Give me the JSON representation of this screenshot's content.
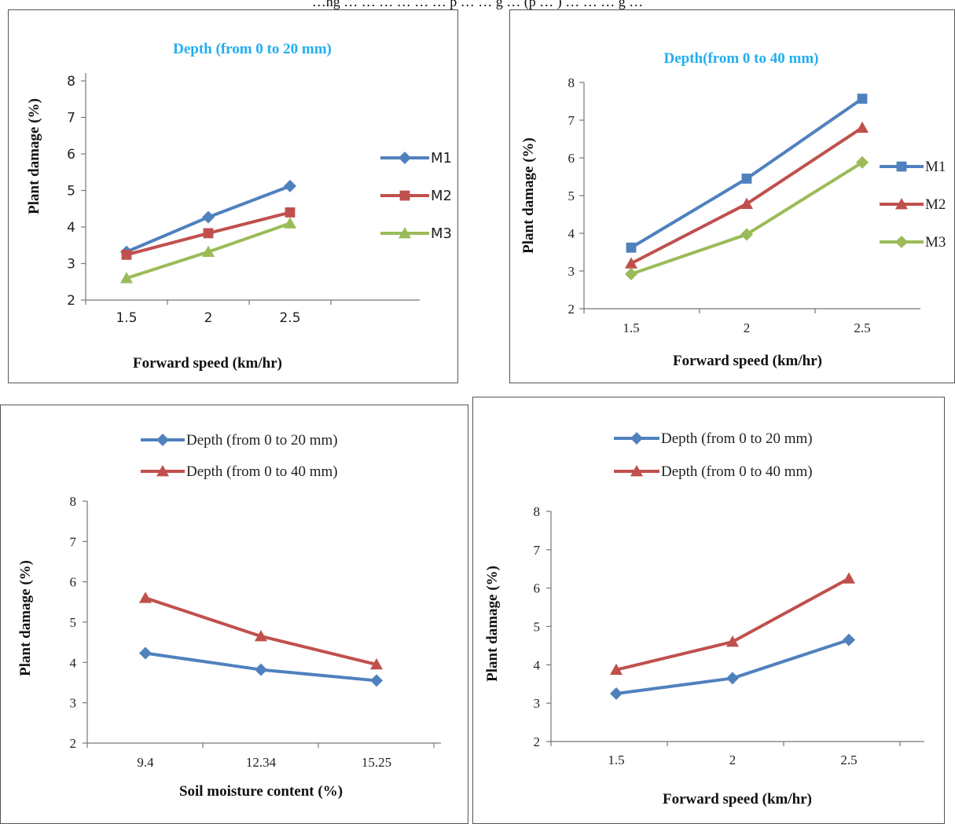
{
  "top_caption": "…ng … … … … … … p … … g … (p … ) … … … g …",
  "chart_data": [
    {
      "id": "c1",
      "type": "line",
      "title": "Depth (from 0 to 20 mm)",
      "xlabel": "Forward speed  (km/hr)",
      "ylabel": "Plant damage (%)",
      "categories": [
        "1.5",
        "2",
        "2.5"
      ],
      "ylim": [
        2,
        8
      ],
      "yticks": [
        2,
        3,
        4,
        5,
        6,
        7,
        8
      ],
      "legend_position": "right",
      "grid": false,
      "series": [
        {
          "name": "M1",
          "color": "#4f81bd",
          "marker": "diamond",
          "values": [
            3.32,
            4.27,
            5.12
          ]
        },
        {
          "name": "M2",
          "color": "#c0504d",
          "marker": "square",
          "values": [
            3.24,
            3.83,
            4.4
          ]
        },
        {
          "name": "M3",
          "color": "#9bbb59",
          "marker": "triangle",
          "values": [
            2.6,
            3.32,
            4.1
          ]
        }
      ]
    },
    {
      "id": "c2",
      "type": "line",
      "title": "Depth(from 0 to 40 mm)",
      "xlabel": "Forward speed (km/hr)",
      "ylabel": "Plant damage (%)",
      "categories": [
        "1.5",
        "2",
        "2.5"
      ],
      "ylim": [
        2,
        8
      ],
      "yticks": [
        2,
        3,
        4,
        5,
        6,
        7,
        8
      ],
      "legend_position": "right",
      "grid": false,
      "series": [
        {
          "name": "M1",
          "color": "#4f81bd",
          "marker": "square",
          "values": [
            3.62,
            5.45,
            7.57
          ]
        },
        {
          "name": "M2",
          "color": "#c0504d",
          "marker": "triangle",
          "values": [
            3.2,
            4.78,
            6.8
          ]
        },
        {
          "name": "M3",
          "color": "#9bbb59",
          "marker": "diamond",
          "values": [
            2.92,
            3.97,
            5.88
          ]
        }
      ]
    },
    {
      "id": "c3",
      "type": "line",
      "title": "",
      "xlabel": "Soil moisture content (%)",
      "ylabel": "Plant damage (%)",
      "categories": [
        "9.4",
        "12.34",
        "15.25"
      ],
      "ylim": [
        2,
        8
      ],
      "yticks": [
        2,
        3,
        4,
        5,
        6,
        7,
        8
      ],
      "legend_position": "top",
      "grid": false,
      "series": [
        {
          "name": "Depth (from 0 to 20 mm)",
          "color": "#4f81bd",
          "marker": "diamond",
          "values": [
            4.23,
            3.82,
            3.55
          ]
        },
        {
          "name": "Depth (from 0 to 40 mm)",
          "color": "#c0504d",
          "marker": "triangle",
          "values": [
            5.6,
            4.65,
            3.95
          ]
        }
      ]
    },
    {
      "id": "c4",
      "type": "line",
      "title": "",
      "xlabel": "Forward speed (km/hr)",
      "ylabel": "Plant damage (%)",
      "categories": [
        "1.5",
        "2",
        "2.5"
      ],
      "ylim": [
        2,
        8
      ],
      "yticks": [
        2,
        3,
        4,
        5,
        6,
        7,
        8
      ],
      "legend_position": "top",
      "grid": false,
      "series": [
        {
          "name": "Depth (from 0 to 20 mm)",
          "color": "#4f81bd",
          "marker": "diamond",
          "values": [
            3.25,
            3.65,
            4.65
          ]
        },
        {
          "name": "Depth (from 0 to 40 mm)",
          "color": "#c0504d",
          "marker": "triangle",
          "values": [
            3.87,
            4.6,
            6.25
          ]
        }
      ]
    }
  ]
}
